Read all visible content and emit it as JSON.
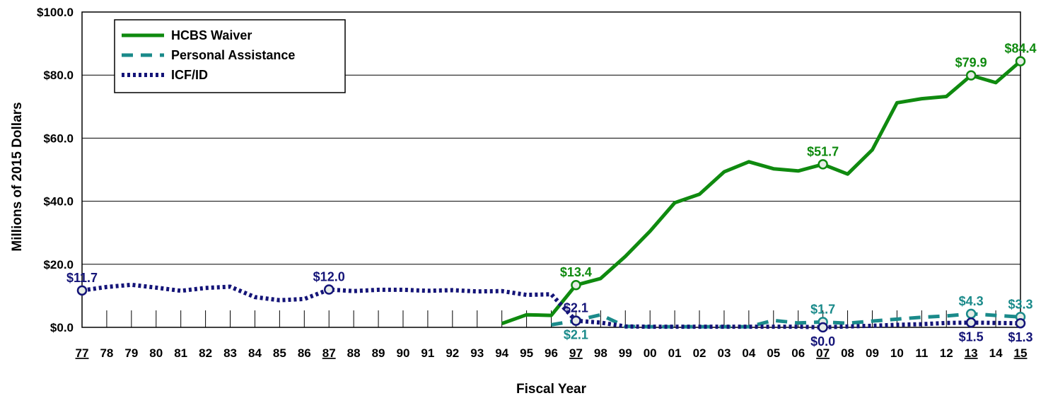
{
  "chart_data": {
    "type": "line",
    "xlabel": "Fiscal Year",
    "ylabel": "Millions of 2015 Dollars",
    "ylim": [
      0,
      100
    ],
    "y_ticks": [
      "$0.0",
      "$20.0",
      "$40.0",
      "$60.0",
      "$80.0",
      "$100.0"
    ],
    "x_categories": [
      "77",
      "78",
      "79",
      "80",
      "81",
      "82",
      "83",
      "84",
      "85",
      "86",
      "87",
      "88",
      "89",
      "90",
      "91",
      "92",
      "93",
      "94",
      "95",
      "96",
      "97",
      "98",
      "99",
      "00",
      "01",
      "02",
      "03",
      "04",
      "05",
      "06",
      "07",
      "08",
      "09",
      "10",
      "11",
      "12",
      "13",
      "14",
      "15"
    ],
    "underlined_categories": [
      "77",
      "87",
      "97",
      "07",
      "13",
      "15"
    ],
    "grid": "horizontal",
    "legend_placement": "top-left",
    "series": [
      {
        "name": "HCBS Waiver",
        "color": "#0f8a0f",
        "style": "solid",
        "values": [
          null,
          null,
          null,
          null,
          null,
          null,
          null,
          null,
          null,
          null,
          null,
          null,
          null,
          null,
          null,
          null,
          null,
          1.2,
          4.0,
          3.8,
          13.4,
          15.5,
          22.5,
          30.5,
          39.5,
          42.2,
          49.3,
          52.5,
          50.3,
          49.6,
          51.7,
          48.6,
          56.3,
          71.2,
          72.5,
          73.2,
          79.9,
          77.6,
          84.4
        ]
      },
      {
        "name": "Personal Assistance",
        "color": "#1a8a8a",
        "style": "dashed",
        "values": [
          null,
          null,
          null,
          null,
          null,
          null,
          null,
          null,
          null,
          null,
          null,
          null,
          null,
          null,
          null,
          null,
          null,
          null,
          null,
          0.8,
          2.1,
          4.0,
          0.3,
          0.2,
          0.2,
          0.2,
          0.2,
          0.2,
          2.2,
          1.4,
          1.7,
          1.3,
          2.0,
          2.6,
          3.2,
          3.6,
          4.3,
          3.8,
          3.3
        ]
      },
      {
        "name": "ICF/ID",
        "color": "#141478",
        "style": "dotted",
        "values": [
          11.7,
          12.8,
          13.5,
          12.6,
          11.6,
          12.5,
          12.9,
          9.6,
          8.6,
          9.0,
          12.0,
          11.5,
          11.9,
          11.9,
          11.6,
          11.8,
          11.4,
          11.5,
          10.3,
          10.5,
          2.1,
          1.5,
          0.3,
          0.2,
          0.2,
          0.2,
          0.2,
          0.2,
          0.2,
          0.2,
          0.0,
          0.3,
          0.5,
          0.8,
          1.0,
          1.4,
          1.5,
          1.4,
          1.3
        ]
      }
    ],
    "annotations": [
      {
        "series": 0,
        "index": 20,
        "text": "$13.4",
        "pos": "above"
      },
      {
        "series": 0,
        "index": 30,
        "text": "$51.7",
        "pos": "above"
      },
      {
        "series": 0,
        "index": 36,
        "text": "$79.9",
        "pos": "above"
      },
      {
        "series": 0,
        "index": 38,
        "text": "$84.4",
        "pos": "above"
      },
      {
        "series": 1,
        "index": 20,
        "text": "$2.1",
        "pos": "below"
      },
      {
        "series": 1,
        "index": 30,
        "text": "$1.7",
        "pos": "above"
      },
      {
        "series": 1,
        "index": 36,
        "text": "$4.3",
        "pos": "above"
      },
      {
        "series": 1,
        "index": 38,
        "text": "$3.3",
        "pos": "above"
      },
      {
        "series": 2,
        "index": 0,
        "text": "$11.7",
        "pos": "above"
      },
      {
        "series": 2,
        "index": 10,
        "text": "$12.0",
        "pos": "above"
      },
      {
        "series": 2,
        "index": 20,
        "text": "$2.1",
        "pos": "above"
      },
      {
        "series": 2,
        "index": 30,
        "text": "$0.0",
        "pos": "below"
      },
      {
        "series": 2,
        "index": 36,
        "text": "$1.5",
        "pos": "below"
      },
      {
        "series": 2,
        "index": 38,
        "text": "$1.3",
        "pos": "below"
      }
    ]
  }
}
